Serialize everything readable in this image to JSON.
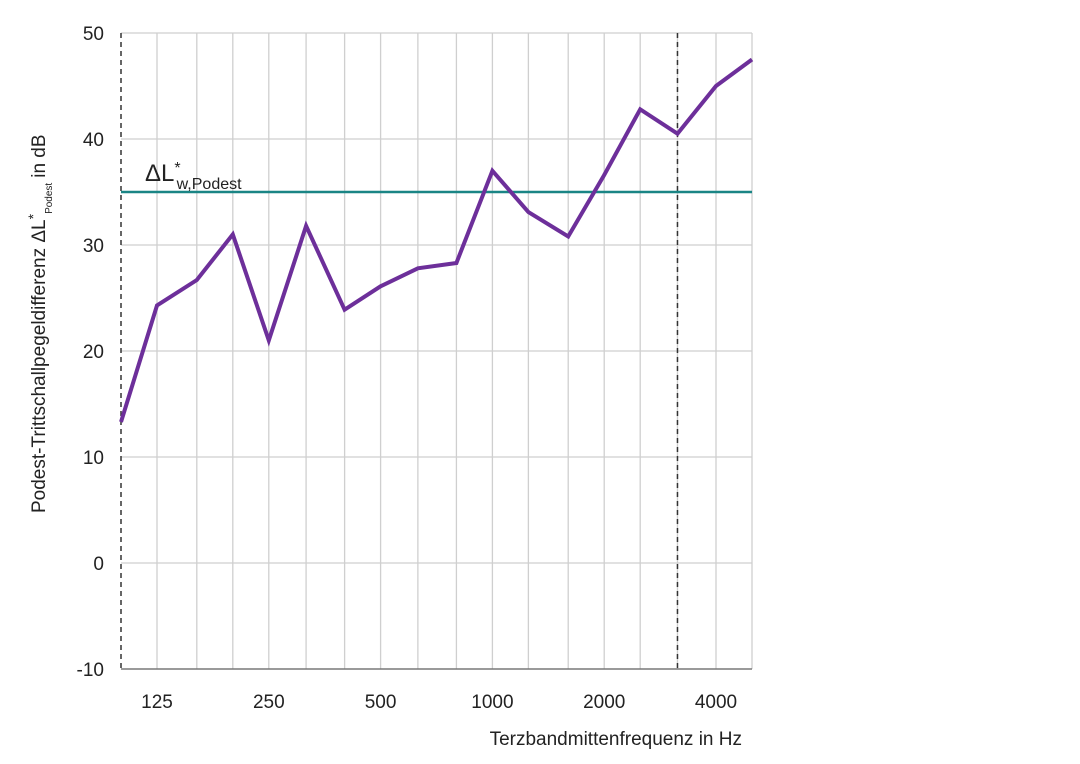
{
  "chart_data": {
    "type": "line",
    "x": [
      100,
      125,
      160,
      200,
      250,
      315,
      400,
      500,
      630,
      800,
      1000,
      1250,
      1600,
      2000,
      2500,
      3150,
      4000,
      5000
    ],
    "x_tick_labels": [
      "125",
      "250",
      "500",
      "1000",
      "2000",
      "4000"
    ],
    "xlabel": "Terzbandmittenfrequenz in Hz",
    "ylabel_main": "Podest-Trittschallpegeldifferenz ΔL",
    "ylabel_sup": "*",
    "ylabel_sub": "Podest",
    "ylabel_tail": "in dB",
    "ylim": [
      -10,
      50
    ],
    "y_ticks": [
      "-10",
      "0",
      "10",
      "20",
      "30",
      "40",
      "50"
    ],
    "grid": true,
    "series": [
      {
        "values": [
          13.3,
          24.3,
          26.7,
          31.0,
          21.0,
          31.8,
          23.9,
          26.1,
          27.8,
          28.3,
          37.0,
          33.1,
          30.8,
          36.6,
          42.8,
          40.5,
          45.0,
          47.5
        ],
        "color": "#6d2f9a"
      }
    ],
    "reference_line": {
      "value": 35,
      "label_main": "ΔL",
      "label_sup": "*",
      "label_sub": "w,Podest",
      "color": "#1a8585"
    },
    "dashed_marker_x": 3150,
    "x_range_label_start": 100,
    "x_range_label_end": 5000
  }
}
